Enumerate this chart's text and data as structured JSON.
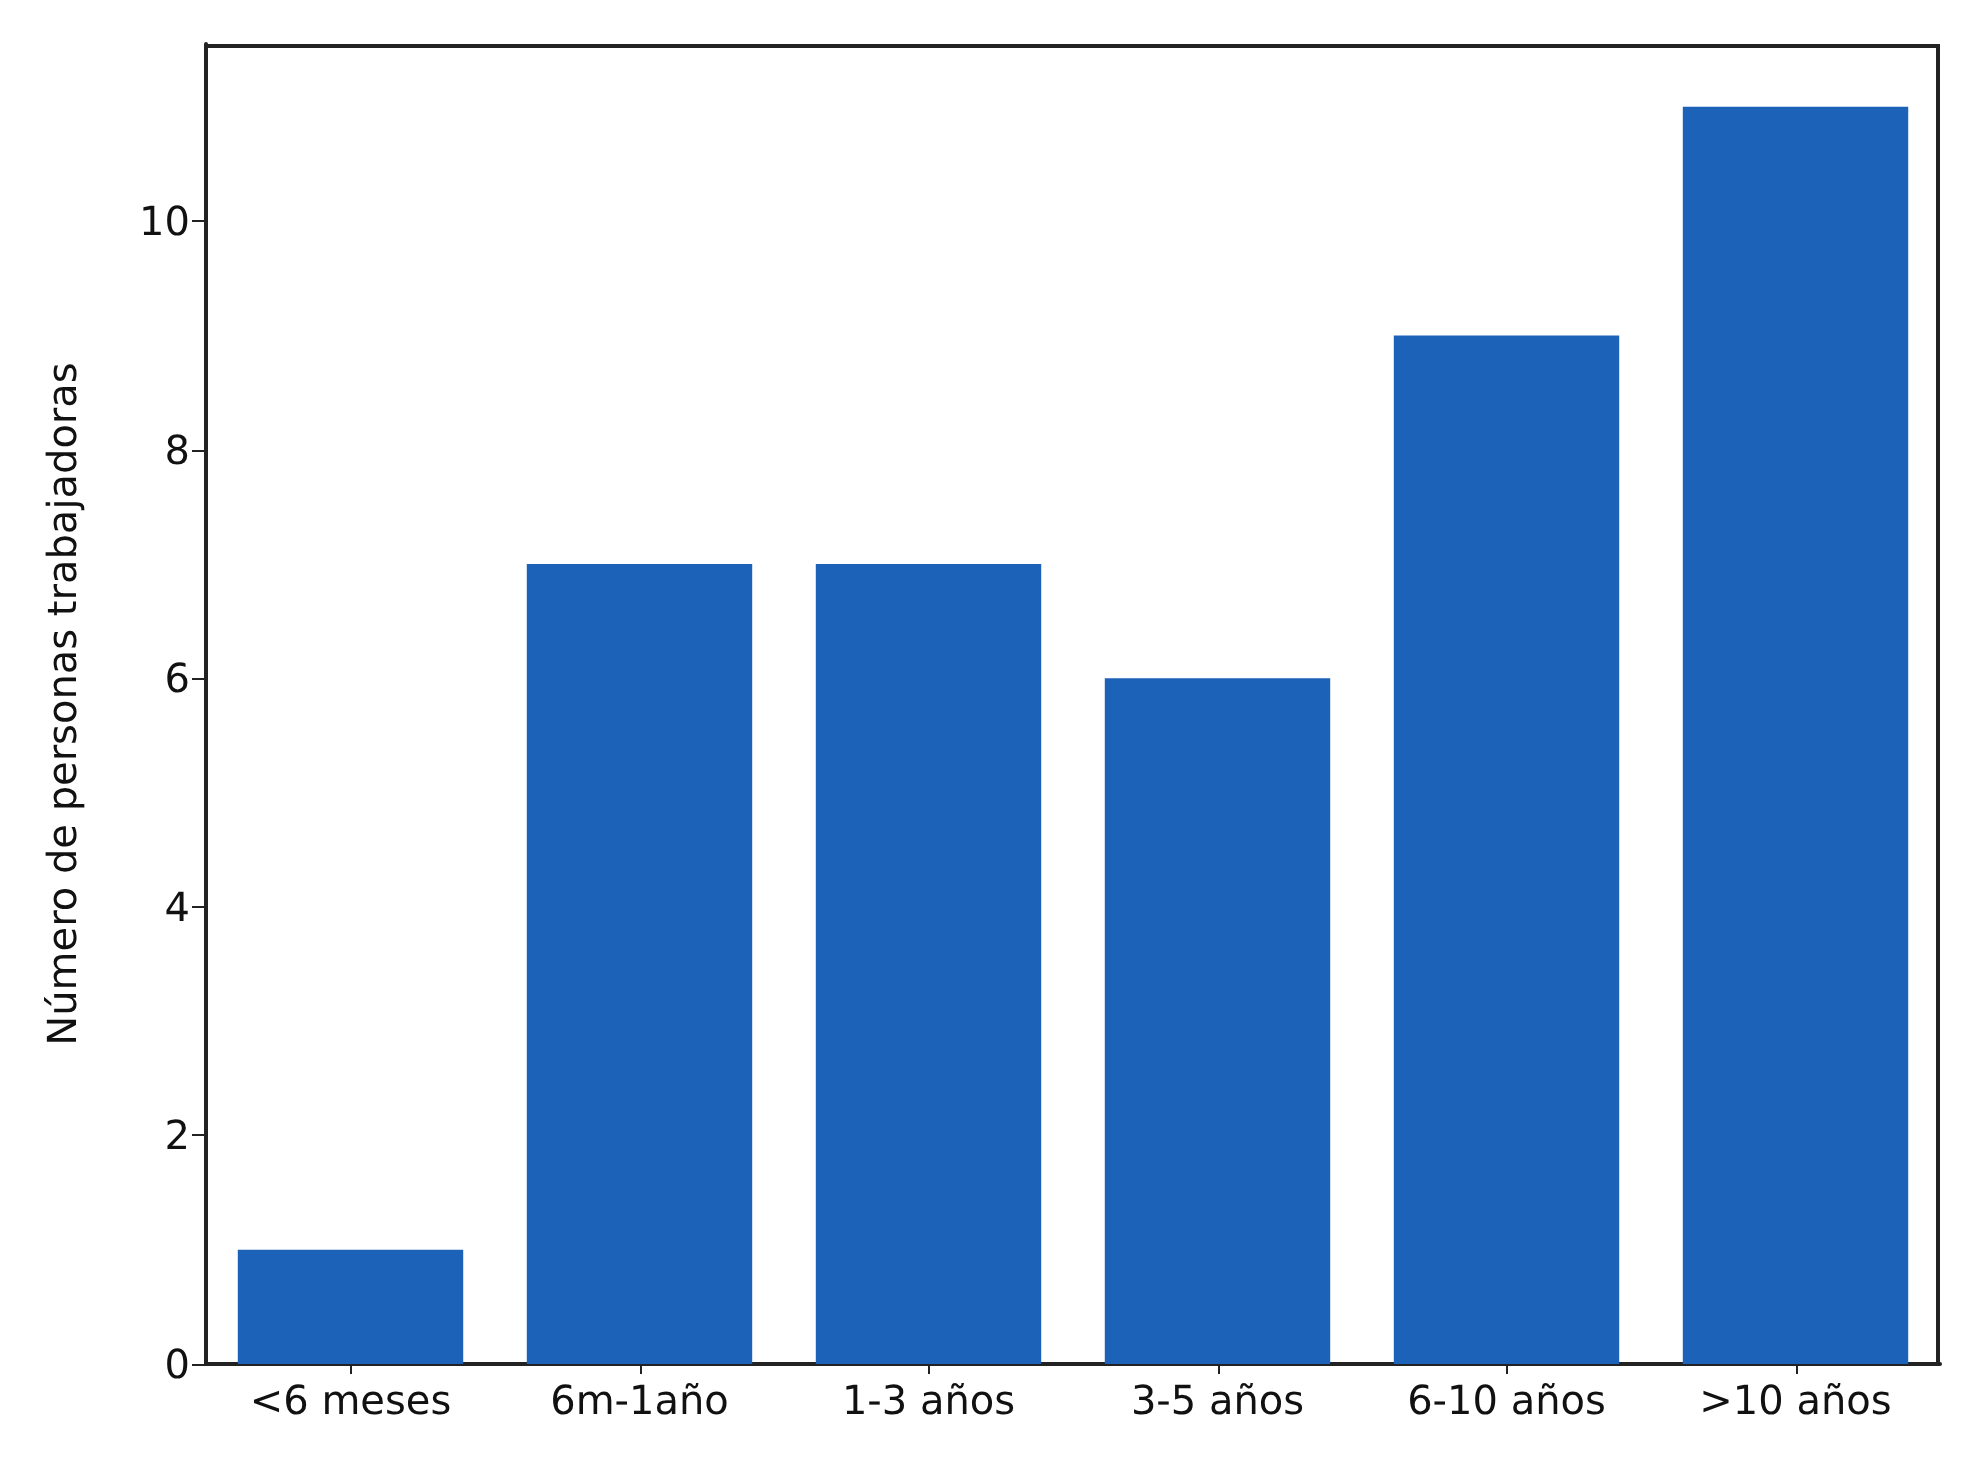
{
  "chart_data": {
    "type": "bar",
    "ylabel": "Número de personas trabajadoras",
    "categories": [
      "<6 meses",
      "6m-1año",
      "1-3 años",
      "3-5 años",
      "6-10 años",
      ">10 años"
    ],
    "values": [
      1,
      7,
      7,
      6,
      9,
      11
    ],
    "color": "#1c62b9",
    "ylim": [
      0,
      11.55
    ],
    "yticks": [
      0,
      2,
      4,
      6,
      8,
      10
    ],
    "grid": false
  }
}
